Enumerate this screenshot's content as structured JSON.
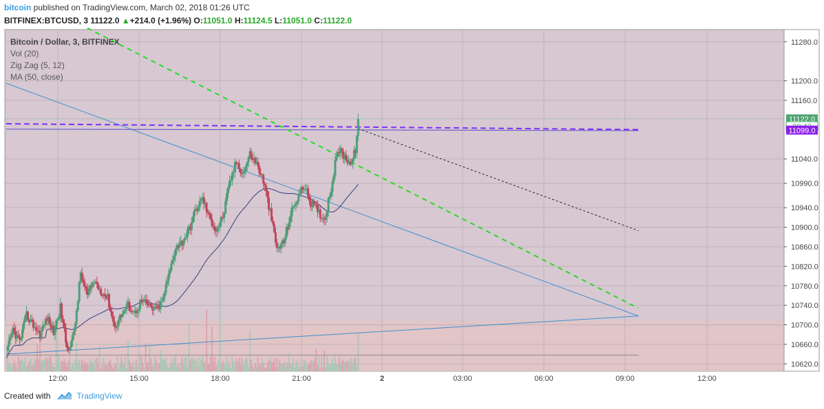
{
  "header": {
    "brand": "bitcoin",
    "published": "published on TradingView.com, March 02, 2018 01:26 UTC",
    "symbol": "BITFINEX:BTCUSD, 3",
    "last": "11122.0",
    "change": "+214.0 (+1.96%)",
    "o_label": "O:",
    "o": "11051.0",
    "h_label": "H:",
    "h": "11124.5",
    "l_label": "L:",
    "l": "11051.0",
    "c_label": "C:",
    "c": "11122.0"
  },
  "legend": {
    "title": "Bitcoin / Dollar, 3, BITFINEX",
    "items": [
      "Vol (20)",
      "Zig Zag (5, 12)",
      "MA (50, close)"
    ]
  },
  "footer": {
    "created": "Created with",
    "brand": "TradingView"
  },
  "colors": {
    "up": "#4e9e78",
    "down": "#c0485d",
    "background": "#d8c8d2",
    "volume_bg": "#e5c4c4",
    "trendline": "#3d8fd0",
    "green_dash": "#22dd22",
    "purple": "#7b2ff7",
    "ma": "#30407a",
    "badge_green": "#4ea36f",
    "badge_purple": "#8c1ee8"
  },
  "chart_data": {
    "type": "candlestick",
    "symbol": "BITFINEX:BTCUSD",
    "interval": "3",
    "x_ticks": [
      "12:00",
      "15:00",
      "18:00",
      "21:00",
      "2",
      "03:00",
      "06:00",
      "09:00",
      "12:00"
    ],
    "y_ticks": [
      11280.0,
      11200.0,
      11160.0,
      11040.0,
      10990.0,
      10940.0,
      10900.0,
      10860.0,
      10820.0,
      10780.0,
      10740.0,
      10700.0,
      10660.0,
      10620.0
    ],
    "ylim": [
      10605,
      11305
    ],
    "price_badges": [
      {
        "label": "11122.0",
        "value": 11122.0,
        "color": "#4ea36f"
      },
      {
        "label": "00:42",
        "value": 11107.0,
        "color": "#ffffff"
      },
      {
        "label": "11099.0",
        "value": 11099.0,
        "color": "#8c1ee8"
      }
    ],
    "close_anchors": [
      [
        0,
        10640
      ],
      [
        5,
        10690
      ],
      [
        10,
        10665
      ],
      [
        15,
        10720
      ],
      [
        20,
        10700
      ],
      [
        25,
        10680
      ],
      [
        30,
        10715
      ],
      [
        35,
        10685
      ],
      [
        40,
        10735
      ],
      [
        45,
        10650
      ],
      [
        50,
        10680
      ],
      [
        55,
        10805
      ],
      [
        60,
        10760
      ],
      [
        65,
        10790
      ],
      [
        70,
        10770
      ],
      [
        75,
        10755
      ],
      [
        80,
        10695
      ],
      [
        85,
        10720
      ],
      [
        90,
        10740
      ],
      [
        95,
        10725
      ],
      [
        100,
        10750
      ],
      [
        105,
        10740
      ],
      [
        110,
        10730
      ],
      [
        115,
        10745
      ],
      [
        120,
        10800
      ],
      [
        125,
        10860
      ],
      [
        130,
        10870
      ],
      [
        135,
        10895
      ],
      [
        140,
        10935
      ],
      [
        145,
        10960
      ],
      [
        150,
        10920
      ],
      [
        155,
        10895
      ],
      [
        160,
        10920
      ],
      [
        165,
        10990
      ],
      [
        170,
        11035
      ],
      [
        175,
        11010
      ],
      [
        180,
        11050
      ],
      [
        185,
        11030
      ],
      [
        190,
        10995
      ],
      [
        195,
        10930
      ],
      [
        200,
        10855
      ],
      [
        205,
        10870
      ],
      [
        210,
        10925
      ],
      [
        215,
        10960
      ],
      [
        220,
        10985
      ],
      [
        225,
        10950
      ],
      [
        230,
        10935
      ],
      [
        235,
        10915
      ],
      [
        240,
        10980
      ],
      [
        245,
        11060
      ],
      [
        250,
        11045
      ],
      [
        255,
        11030
      ],
      [
        258,
        11060
      ],
      [
        260,
        11122
      ]
    ],
    "total_bars": 260,
    "ma_period": 50,
    "trend_lines": [
      {
        "from": [
          0,
          11195
        ],
        "to": [
          467,
          10718
        ],
        "style": "solid"
      },
      {
        "from": [
          0,
          10640
        ],
        "to": [
          467,
          10718
        ],
        "style": "solid"
      },
      {
        "from": [
          0,
          11112
        ],
        "to": [
          467,
          11100
        ],
        "style": "dashed-purple"
      },
      {
        "from": [
          0,
          11101
        ],
        "to": [
          467,
          11098
        ],
        "style": "solid-purple"
      },
      {
        "from": [
          60,
          11308
        ],
        "to": [
          467,
          10734
        ],
        "style": "dashed-green"
      },
      {
        "from": [
          260,
          11102
        ],
        "to": [
          467,
          10893
        ],
        "style": "dashed-black"
      },
      {
        "from": [
          0,
          10638
        ],
        "to": [
          467,
          10638
        ],
        "style": "solid-gray"
      }
    ]
  }
}
